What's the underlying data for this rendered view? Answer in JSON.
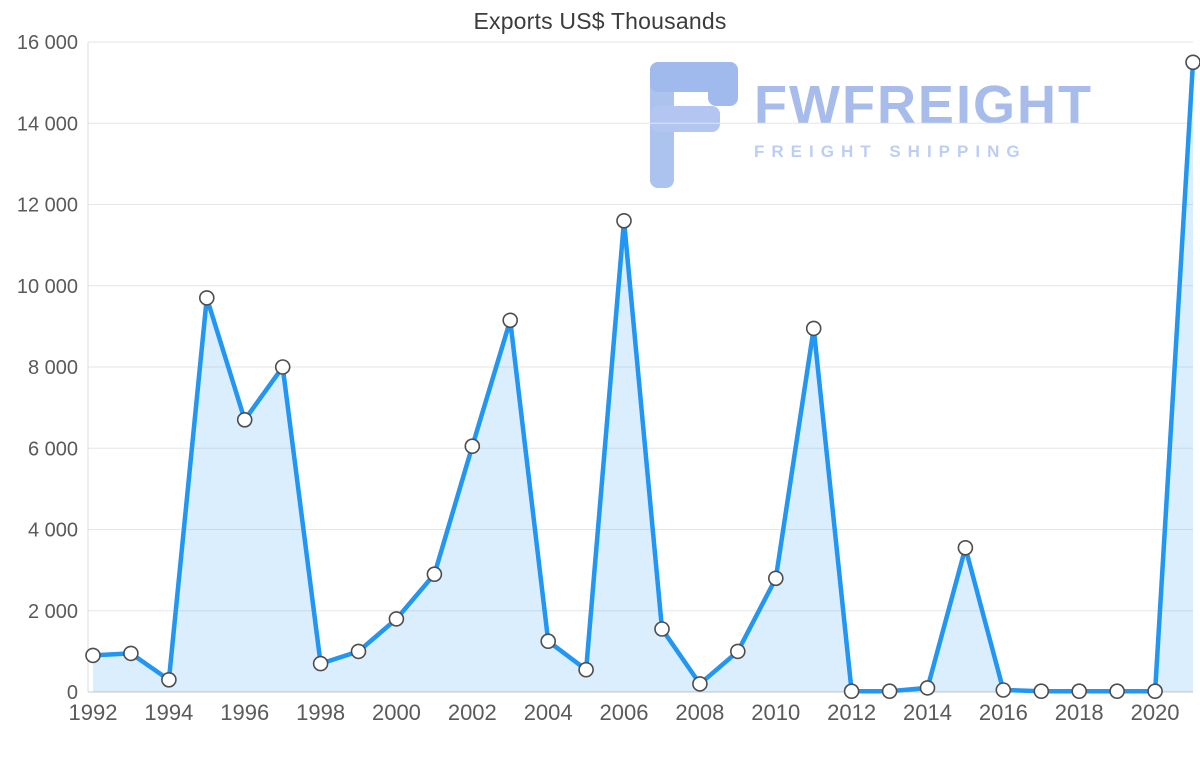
{
  "chart_data": {
    "type": "area",
    "title": "Exports US$ Thousands",
    "x": [
      1992,
      1993,
      1994,
      1995,
      1996,
      1997,
      1998,
      1999,
      2000,
      2001,
      2002,
      2003,
      2004,
      2005,
      2006,
      2007,
      2008,
      2009,
      2010,
      2011,
      2012,
      2013,
      2014,
      2015,
      2016,
      2017,
      2018,
      2019,
      2020,
      2021
    ],
    "values": [
      900,
      950,
      300,
      9700,
      6700,
      8000,
      700,
      1000,
      1800,
      2900,
      6050,
      9150,
      1250,
      550,
      11600,
      1550,
      200,
      1000,
      2800,
      8950,
      20,
      20,
      100,
      3550,
      50,
      20,
      20,
      20,
      20,
      15500
    ],
    "xlabel": "",
    "ylabel": "",
    "ylim": [
      0,
      16000
    ],
    "ytick_step": 2000,
    "ytick_labels": [
      "0",
      "2 000",
      "4 000",
      "6 000",
      "8 000",
      "10 000",
      "12 000",
      "14 000",
      "16 000"
    ],
    "xtick_labels": [
      "1992",
      "1994",
      "1996",
      "1998",
      "2000",
      "2002",
      "2004",
      "2006",
      "2008",
      "2010",
      "2012",
      "2014",
      "2016",
      "2018",
      "2020"
    ],
    "grid": true,
    "legend": "none",
    "line_color": "#2196f3",
    "fill_color": "#2196f3",
    "fill_opacity": 0.16,
    "marker_fill": "#ffffff",
    "marker_stroke": "#4d4d4d",
    "grid_color": "#e6e6e6",
    "axis_color": "#c9c9c9",
    "tick_label_color": "#5a5a5a"
  },
  "watermark": {
    "brand": "FWFREIGHT",
    "tagline": "FREIGHT SHIPPING",
    "logo_color_dark": "#9db7ee",
    "logo_color_light": "#b3c8f3"
  }
}
